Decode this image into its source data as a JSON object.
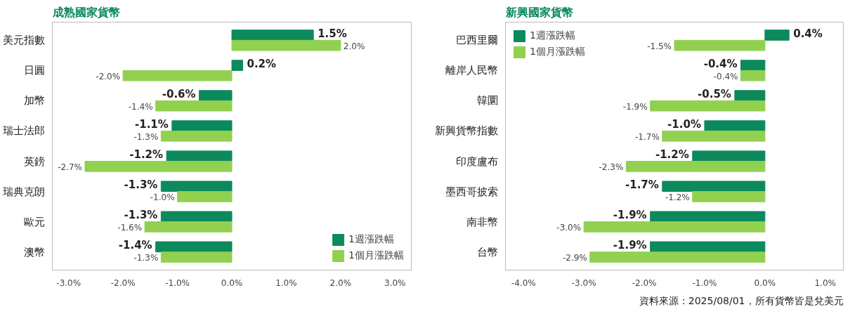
{
  "chart_data": [
    {
      "type": "bar",
      "orientation": "horizontal",
      "title": "成熟國家貨幣",
      "categories": [
        "美元指數",
        "日圓",
        "加幣",
        "瑞士法郎",
        "英鎊",
        "瑞典克朗",
        "歐元",
        "澳幣"
      ],
      "series": [
        {
          "name": "1週漲跌幅",
          "color": "#0c8a5c",
          "values": [
            1.5,
            0.2,
            -0.6,
            -1.1,
            -1.2,
            -1.3,
            -1.3,
            -1.4
          ],
          "value_labels": [
            "1.5%",
            "0.2%",
            "-0.6%",
            "-1.1%",
            "-1.2%",
            "-1.3%",
            "-1.3%",
            "-1.4%"
          ]
        },
        {
          "name": "1個月漲跌幅",
          "color": "#92d050",
          "values": [
            2.0,
            -2.0,
            -1.4,
            -1.3,
            -2.7,
            -1.0,
            -1.6,
            -1.3
          ],
          "value_labels": [
            "2.0%",
            "-2.0%",
            "-1.4%",
            "-1.3%",
            "-2.7%",
            "-1.0%",
            "-1.6%",
            "-1.3%"
          ]
        }
      ],
      "xlim": [
        -3.3,
        3.3
      ],
      "xticks": [
        {
          "value": -3,
          "label": "-3.0%"
        },
        {
          "value": -2,
          "label": "-2.0%"
        },
        {
          "value": -1,
          "label": "-1.0%"
        },
        {
          "value": 0,
          "label": "0.0%"
        },
        {
          "value": 1,
          "label": "1.0%"
        },
        {
          "value": 2,
          "label": "2.0%"
        },
        {
          "value": 3,
          "label": "3.0%"
        }
      ],
      "grid": false,
      "legend": "bottom right"
    },
    {
      "type": "bar",
      "orientation": "horizontal",
      "title": "新興國家貨幣",
      "categories": [
        "巴西里爾",
        "離岸人民幣",
        "韓圜",
        "新興貨幣指數",
        "印度盧布",
        "墨西哥披索",
        "南非幣",
        "台幣"
      ],
      "series": [
        {
          "name": "1週漲跌幅",
          "color": "#0c8a5c",
          "values": [
            0.4,
            -0.4,
            -0.5,
            -1.0,
            -1.2,
            -1.7,
            -1.9,
            -1.9
          ],
          "value_labels": [
            "0.4%",
            "-0.4%",
            "-0.5%",
            "-1.0%",
            "-1.2%",
            "-1.7%",
            "-1.9%",
            "-1.9%"
          ]
        },
        {
          "name": "1個月漲跌幅",
          "color": "#92d050",
          "values": [
            -1.5,
            -0.4,
            -1.9,
            -1.7,
            -2.3,
            -1.2,
            -3.0,
            -2.9
          ],
          "value_labels": [
            "-1.5%",
            "-0.4%",
            "-1.9%",
            "-1.7%",
            "-2.3%",
            "-1.2%",
            "-3.0%",
            "-2.9%"
          ]
        }
      ],
      "xlim": [
        -4.3,
        1.3
      ],
      "xticks": [
        {
          "value": -4,
          "label": "-4.0%"
        },
        {
          "value": -3,
          "label": "-3.0%"
        },
        {
          "value": -2,
          "label": "-2.0%"
        },
        {
          "value": -1,
          "label": "-1.0%"
        },
        {
          "value": 0,
          "label": "0.0%"
        },
        {
          "value": 1,
          "label": "1.0%"
        }
      ],
      "grid": false,
      "legend": "top left",
      "annotations": [
        "資料來源 : 2025/08/01，所有貨幣皆是兌美元"
      ]
    }
  ]
}
